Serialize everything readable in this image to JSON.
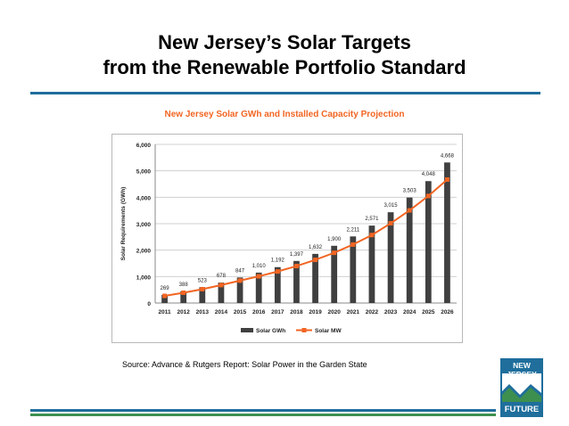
{
  "slide": {
    "title_line1": "New Jersey’s Solar Targets",
    "title_line2": "from the Renewable Portfolio Standard",
    "source": "Source: Advance & Rutgers Report: Solar Power in the Garden State"
  },
  "logo": {
    "line1": "NEW JERSEY",
    "line2": "FUTURE"
  },
  "colors": {
    "bar": "#404040",
    "line": "#f26522",
    "title_rule": "#1f6e9c",
    "green_rule": "#3d8f4f"
  },
  "chart_data": {
    "type": "bar",
    "title": "New Jersey Solar GWh and Installed Capacity Projection",
    "xlabel": "",
    "ylabel": "Solar Requirements (GWh)",
    "ylim": [
      0,
      6000
    ],
    "yticks": [
      "0",
      "1,000",
      "2,000",
      "3,000",
      "4,000",
      "5,000",
      "6,000"
    ],
    "yticks_values": [
      0,
      1000,
      2000,
      3000,
      4000,
      5000,
      6000
    ],
    "categories": [
      "2011",
      "2012",
      "2013",
      "2014",
      "2015",
      "2016",
      "2017",
      "2018",
      "2019",
      "2020",
      "2021",
      "2022",
      "2023",
      "2024",
      "2025",
      "2026"
    ],
    "series": [
      {
        "name": "Solar GWh",
        "kind": "bar",
        "values": [
          306,
          442,
          596,
          772,
          965,
          1150,
          1357,
          1591,
          1858,
          2164,
          2518,
          2928,
          3433,
          3989,
          4610,
          5316
        ]
      },
      {
        "name": "Solar MW",
        "kind": "line",
        "values": [
          269,
          388,
          523,
          678,
          847,
          1010,
          1192,
          1397,
          1632,
          1900,
          2211,
          2571,
          3015,
          3503,
          4048,
          4668
        ],
        "labels": [
          "269",
          "388",
          "523",
          "678",
          "847",
          "1,010",
          "1,192",
          "1,397",
          "1,632",
          "1,900",
          "2,211",
          "2,571",
          "3,015",
          "3,503",
          "4,048",
          "4,668"
        ]
      }
    ],
    "grid": true,
    "legend_position": "bottom"
  }
}
